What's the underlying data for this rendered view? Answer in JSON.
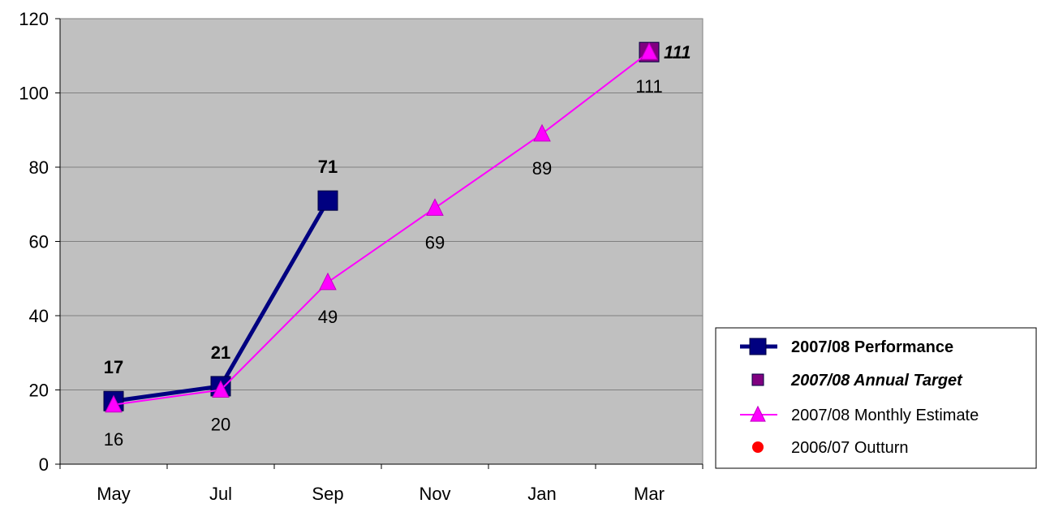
{
  "chart_data": {
    "type": "line",
    "categories": [
      "May",
      "Jul",
      "Sep",
      "Nov",
      "Jan",
      "Mar"
    ],
    "ylim": [
      0,
      120
    ],
    "yticks": [
      0,
      20,
      40,
      60,
      80,
      100,
      120
    ],
    "grid": true,
    "plot_background": "#c0c0c0",
    "legend_position": "right",
    "series": [
      {
        "name": "2007/08 Performance",
        "color": "#000080",
        "marker": "square",
        "values": [
          17,
          21,
          71,
          null,
          null,
          null
        ],
        "label_style": "bold"
      },
      {
        "name": "2007/08 Annual Target",
        "color": "#800080",
        "marker": "square",
        "values": [
          null,
          null,
          null,
          null,
          null,
          111
        ],
        "label_style": "bold-italic"
      },
      {
        "name": "2007/08 Monthly Estimate",
        "color": "#ff00ff",
        "marker": "triangle",
        "values": [
          16,
          20,
          49,
          69,
          89,
          111
        ],
        "label_style": "normal"
      },
      {
        "name": "2006/07 Outturn",
        "color": "#ff0000",
        "marker": "circle",
        "values": [
          null,
          null,
          null,
          null,
          null,
          null
        ],
        "label_style": "normal"
      }
    ]
  }
}
